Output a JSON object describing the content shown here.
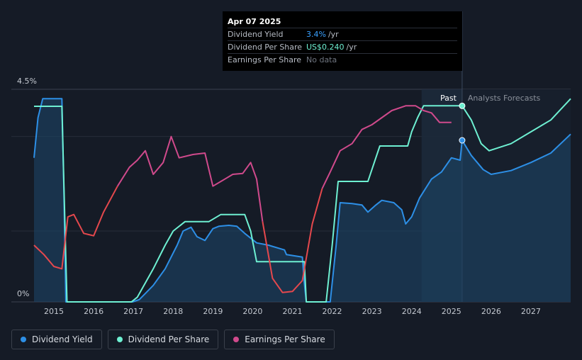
{
  "tooltip": {
    "date": "Apr 07 2025",
    "rows": [
      {
        "label": "Dividend Yield",
        "value": "3.4%",
        "unit": "/yr"
      },
      {
        "label": "Dividend Per Share",
        "value": "US$0.240",
        "unit": "/yr"
      },
      {
        "label": "Earnings Per Share",
        "value": "No data",
        "unit": ""
      }
    ]
  },
  "legend": [
    {
      "label": "Dividend Yield",
      "color": "#2d8fe6"
    },
    {
      "label": "Dividend Per Share",
      "color": "#6ef0d2"
    },
    {
      "label": "Earnings Per Share",
      "color": "#d04a8c"
    }
  ],
  "chart_data": {
    "type": "line",
    "y_axis_labels": {
      "top": "4.5%",
      "bottom": "0%"
    },
    "ylim": [
      0,
      4.5
    ],
    "xlim": [
      2014.5,
      2028.0
    ],
    "x_ticks": [
      "2015",
      "2016",
      "2017",
      "2018",
      "2019",
      "2020",
      "2021",
      "2022",
      "2023",
      "2024",
      "2025",
      "2026",
      "2027"
    ],
    "past_label": "Past",
    "forecast_label": "Analysts Forecasts",
    "past_start": 2024.25,
    "divider_x": 2025.27,
    "series": [
      {
        "name": "Dividend Yield",
        "color": "#2d8fe6",
        "points": [
          [
            2014.5,
            3.05
          ],
          [
            2014.6,
            3.9
          ],
          [
            2014.72,
            4.3
          ],
          [
            2015.2,
            4.3
          ],
          [
            2015.25,
            2.4
          ],
          [
            2015.3,
            0
          ],
          [
            2016.98,
            0
          ],
          [
            2017.15,
            0.05
          ],
          [
            2017.5,
            0.35
          ],
          [
            2017.8,
            0.7
          ],
          [
            2018.1,
            1.2
          ],
          [
            2018.25,
            1.5
          ],
          [
            2018.45,
            1.58
          ],
          [
            2018.6,
            1.38
          ],
          [
            2018.8,
            1.3
          ],
          [
            2019.0,
            1.55
          ],
          [
            2019.15,
            1.6
          ],
          [
            2019.4,
            1.62
          ],
          [
            2019.6,
            1.6
          ],
          [
            2019.8,
            1.45
          ],
          [
            2020.1,
            1.25
          ],
          [
            2020.4,
            1.2
          ],
          [
            2020.8,
            1.1
          ],
          [
            2020.85,
            1.0
          ],
          [
            2021.25,
            0.95
          ],
          [
            2021.3,
            0.4
          ],
          [
            2021.35,
            0
          ],
          [
            2021.95,
            0
          ],
          [
            2022.1,
            1.2
          ],
          [
            2022.2,
            2.1
          ],
          [
            2022.5,
            2.08
          ],
          [
            2022.75,
            2.05
          ],
          [
            2022.9,
            1.9
          ],
          [
            2023.1,
            2.05
          ],
          [
            2023.25,
            2.15
          ],
          [
            2023.55,
            2.1
          ],
          [
            2023.75,
            1.95
          ],
          [
            2023.85,
            1.65
          ],
          [
            2024.0,
            1.8
          ],
          [
            2024.2,
            2.2
          ],
          [
            2024.5,
            2.6
          ],
          [
            2024.75,
            2.75
          ],
          [
            2025.0,
            3.05
          ],
          [
            2025.22,
            3.0
          ],
          [
            2025.27,
            3.42
          ],
          [
            2025.5,
            3.1
          ],
          [
            2025.8,
            2.8
          ],
          [
            2026.0,
            2.7
          ],
          [
            2026.5,
            2.78
          ],
          [
            2027.0,
            2.95
          ],
          [
            2027.5,
            3.15
          ],
          [
            2028.0,
            3.55
          ]
        ]
      },
      {
        "name": "Dividend Per Share",
        "color": "#6ef0d2",
        "points": [
          [
            2014.5,
            4.14
          ],
          [
            2015.2,
            4.14
          ],
          [
            2015.25,
            2.5
          ],
          [
            2015.33,
            0
          ],
          [
            2016.95,
            0
          ],
          [
            2017.1,
            0.1
          ],
          [
            2017.5,
            0.7
          ],
          [
            2017.8,
            1.2
          ],
          [
            2018.0,
            1.5
          ],
          [
            2018.3,
            1.7
          ],
          [
            2018.9,
            1.7
          ],
          [
            2019.2,
            1.85
          ],
          [
            2019.8,
            1.85
          ],
          [
            2019.95,
            1.5
          ],
          [
            2020.1,
            0.85
          ],
          [
            2021.1,
            0.85
          ],
          [
            2021.3,
            0.85
          ],
          [
            2021.35,
            0
          ],
          [
            2021.85,
            0
          ],
          [
            2022.0,
            1.2
          ],
          [
            2022.15,
            2.55
          ],
          [
            2022.9,
            2.55
          ],
          [
            2023.0,
            2.8
          ],
          [
            2023.2,
            3.3
          ],
          [
            2023.9,
            3.3
          ],
          [
            2024.0,
            3.6
          ],
          [
            2024.15,
            3.9
          ],
          [
            2024.3,
            4.15
          ],
          [
            2025.27,
            4.15
          ],
          [
            2025.5,
            3.85
          ],
          [
            2025.75,
            3.35
          ],
          [
            2025.95,
            3.2
          ],
          [
            2026.5,
            3.35
          ],
          [
            2027.0,
            3.6
          ],
          [
            2027.5,
            3.85
          ],
          [
            2028.0,
            4.3
          ]
        ]
      },
      {
        "name": "Earnings Per Share",
        "color": "#d04a8c",
        "points": [
          [
            2014.5,
            1.2
          ],
          [
            2014.75,
            1.0
          ],
          [
            2015.0,
            0.75
          ],
          [
            2015.2,
            0.7
          ],
          [
            2015.35,
            1.8
          ],
          [
            2015.5,
            1.85
          ],
          [
            2015.75,
            1.45
          ],
          [
            2016.0,
            1.4
          ],
          [
            2016.25,
            1.9
          ],
          [
            2016.6,
            2.45
          ],
          [
            2016.9,
            2.85
          ],
          [
            2017.1,
            3.0
          ],
          [
            2017.3,
            3.2
          ],
          [
            2017.5,
            2.7
          ],
          [
            2017.75,
            2.95
          ],
          [
            2017.95,
            3.5
          ],
          [
            2018.15,
            3.05
          ],
          [
            2018.5,
            3.12
          ],
          [
            2018.8,
            3.15
          ],
          [
            2019.0,
            2.45
          ],
          [
            2019.3,
            2.6
          ],
          [
            2019.5,
            2.7
          ],
          [
            2019.75,
            2.72
          ],
          [
            2019.95,
            2.95
          ],
          [
            2020.1,
            2.6
          ],
          [
            2020.25,
            1.7
          ],
          [
            2020.5,
            0.5
          ],
          [
            2020.75,
            0.2
          ],
          [
            2021.0,
            0.22
          ],
          [
            2021.25,
            0.45
          ],
          [
            2021.5,
            1.65
          ],
          [
            2021.75,
            2.4
          ],
          [
            2021.95,
            2.75
          ],
          [
            2022.2,
            3.2
          ],
          [
            2022.5,
            3.35
          ],
          [
            2022.75,
            3.65
          ],
          [
            2023.0,
            3.75
          ],
          [
            2023.5,
            4.05
          ],
          [
            2023.85,
            4.15
          ],
          [
            2024.1,
            4.15
          ],
          [
            2024.3,
            4.05
          ],
          [
            2024.5,
            4.0
          ],
          [
            2024.7,
            3.8
          ],
          [
            2025.0,
            3.8
          ]
        ]
      }
    ]
  }
}
